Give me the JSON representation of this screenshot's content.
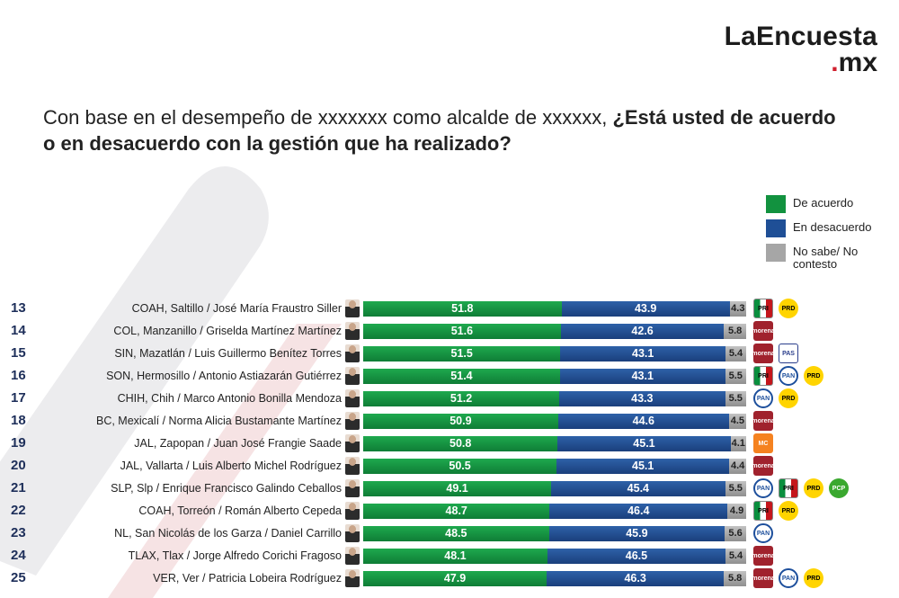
{
  "logo": {
    "line1": "LaEncuesta",
    "line2_dot": ".",
    "line2": "mx"
  },
  "title": {
    "part1": "Con base en el desempeño de xxxxxxx como alcalde de xxxxxx, ",
    "part2": "¿Está usted de acuerdo o en desacuerdo con la gestión que ha realizado?"
  },
  "legend": [
    {
      "label": "De acuerdo",
      "color": "#12923f"
    },
    {
      "label": "En desacuerdo",
      "color": "#1f4f96"
    },
    {
      "label": "No sabe/ No contesto",
      "color": "#a6a6a6"
    }
  ],
  "party_icons": {
    "pri": "PRI",
    "prd": "PRD",
    "morena": "morena",
    "pan": "PAN",
    "pas": "PAS",
    "mc": "MC",
    "pcp": "PCP"
  },
  "chart_data": {
    "type": "bar",
    "orientation": "horizontal",
    "stacked": true,
    "normalized_total": 100,
    "categories": [
      "COAH, Saltillo / José María Fraustro Siller",
      "COL, Manzanillo / Griselda Martínez Martínez",
      "SIN, Mazatlán / Luis Guillermo Benítez Torres",
      "SON, Hermosillo / Antonio Astiazarán Gutiérrez",
      "CHIH, Chih / Marco Antonio Bonilla Mendoza",
      "BC, Mexicalí / Norma Alicia Bustamante Martínez",
      "JAL, Zapopan / Juan José Frangie Saade",
      "JAL, Vallarta / Luis Alberto Michel Rodríguez",
      "SLP, Slp / Enrique Francisco Galindo Ceballos",
      "COAH, Torreón / Román Alberto Cepeda",
      "NL, San Nicolás de los Garza / Daniel Carrillo",
      "TLAX, Tlax / Jorge Alfredo Corichi Fragoso",
      "VER, Ver / Patricia Lobeira Rodríguez"
    ],
    "ranks": [
      13,
      14,
      15,
      16,
      17,
      18,
      19,
      20,
      21,
      22,
      23,
      24,
      25
    ],
    "series": [
      {
        "name": "De acuerdo",
        "values": [
          51.8,
          51.6,
          51.5,
          51.4,
          51.2,
          50.9,
          50.8,
          50.5,
          49.1,
          48.7,
          48.5,
          48.1,
          47.9
        ]
      },
      {
        "name": "En desacuerdo",
        "values": [
          43.9,
          42.6,
          43.1,
          43.1,
          43.3,
          44.6,
          45.1,
          45.1,
          45.4,
          46.4,
          45.9,
          46.5,
          46.3
        ]
      },
      {
        "name": "No sabe/ No contesto",
        "values": [
          4.3,
          5.8,
          5.4,
          5.5,
          5.5,
          4.5,
          4.1,
          4.4,
          5.5,
          4.9,
          5.6,
          5.4,
          5.8
        ]
      }
    ],
    "parties": [
      [
        "pri",
        "prd"
      ],
      [
        "morena"
      ],
      [
        "morena",
        "pas"
      ],
      [
        "pri",
        "pan",
        "prd"
      ],
      [
        "pan",
        "prd"
      ],
      [
        "morena"
      ],
      [
        "mc"
      ],
      [
        "morena"
      ],
      [
        "pan",
        "pri",
        "prd",
        "pcp"
      ],
      [
        "pri",
        "prd"
      ],
      [
        "pan"
      ],
      [
        "morena"
      ],
      [
        "morena",
        "pan",
        "prd"
      ]
    ],
    "legend_position": "right",
    "grid": false
  }
}
